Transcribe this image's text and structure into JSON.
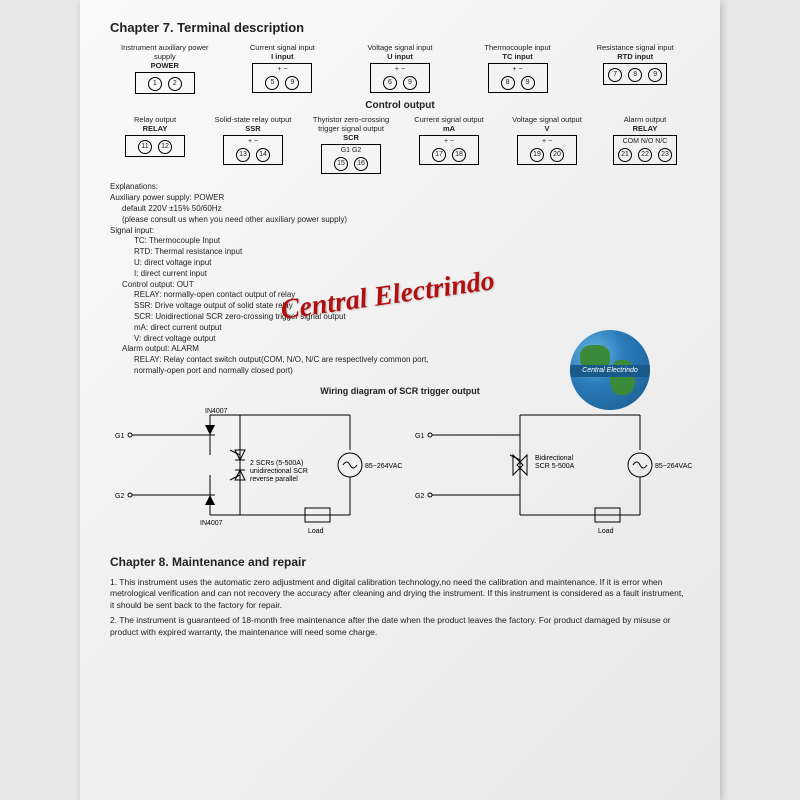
{
  "chapter7": {
    "title": "Chapter 7. Terminal description",
    "row1": [
      {
        "label1": "Instrument auxiliary power supply",
        "label2": "POWER",
        "pins": [
          {
            "n": "1"
          },
          {
            "n": "2"
          }
        ]
      },
      {
        "label1": "Current signal input",
        "label2": "I input",
        "sub": "+ −",
        "pins": [
          {
            "n": "5"
          },
          {
            "n": "9"
          }
        ]
      },
      {
        "label1": "Voltage signal input",
        "label2": "U input",
        "sub": "+ −",
        "pins": [
          {
            "n": "6"
          },
          {
            "n": "9"
          }
        ]
      },
      {
        "label1": "Thermocouple input",
        "label2": "TC input",
        "sub": "+ −",
        "pins": [
          {
            "n": "8"
          },
          {
            "n": "9"
          }
        ]
      },
      {
        "label1": "Resistance signal input",
        "label2": "RTD input",
        "pins": [
          {
            "n": "7"
          },
          {
            "n": "8"
          },
          {
            "n": "9"
          }
        ]
      }
    ],
    "control_output_title": "Control output",
    "row2": [
      {
        "label1": "Relay output",
        "label2": "RELAY",
        "pins": [
          {
            "n": "11"
          },
          {
            "n": "12"
          }
        ]
      },
      {
        "label1": "Solid-state relay output",
        "label2": "SSR",
        "sub": "+ −",
        "pins": [
          {
            "n": "13"
          },
          {
            "n": "14"
          }
        ]
      },
      {
        "label1": "Thyristor zero-crossing trigger signal output",
        "label2": "SCR",
        "sub": "G1 G2",
        "pins": [
          {
            "n": "15"
          },
          {
            "n": "16"
          }
        ]
      },
      {
        "label1": "Current signal output",
        "label2": "mA",
        "sub": "+ −",
        "pins": [
          {
            "n": "17"
          },
          {
            "n": "18"
          }
        ]
      },
      {
        "label1": "Voltage signal output",
        "label2": "V",
        "sub": "+ −",
        "pins": [
          {
            "n": "19"
          },
          {
            "n": "20"
          }
        ]
      },
      {
        "label1": "Alarm output",
        "label2": "RELAY",
        "sub": "COM N/O N/C",
        "pins": [
          {
            "n": "21"
          },
          {
            "n": "22"
          },
          {
            "n": "23"
          }
        ]
      }
    ]
  },
  "explanations": {
    "header": "Explanations:",
    "lines": [
      {
        "t": "Auxiliary power supply: POWER",
        "i": 0
      },
      {
        "t": "default 220V ±15% 50/60Hz",
        "i": 1
      },
      {
        "t": "(please consult us when you need other auxiliary power supply)",
        "i": 1
      },
      {
        "t": "Signal input:",
        "i": 0
      },
      {
        "t": "TC: Thermocouple Input",
        "i": 2
      },
      {
        "t": "RTD: Thermal resistance input",
        "i": 2
      },
      {
        "t": "U: direct voltage input",
        "i": 2
      },
      {
        "t": "I: direct current input",
        "i": 2
      },
      {
        "t": "Control output: OUT",
        "i": 1
      },
      {
        "t": "RELAY: normally-open contact output of relay",
        "i": 2
      },
      {
        "t": "SSR: Drive voltage output of solid state relay",
        "i": 2
      },
      {
        "t": "SCR: Unidirectional SCR zero-crossing trigger signal output",
        "i": 2
      },
      {
        "t": "mA: direct current output",
        "i": 2
      },
      {
        "t": "V: direct voltage output",
        "i": 2
      },
      {
        "t": "Alarm output: ALARM",
        "i": 1
      },
      {
        "t": "RELAY: Relay contact switch output(COM, N/O, N/C are respectively common port,",
        "i": 2
      },
      {
        "t": "normally-open port and normally closed port)",
        "i": 2
      }
    ],
    "wiring_title": "Wiring diagram of SCR trigger output"
  },
  "diagram1": {
    "g1": "G1",
    "g2": "G2",
    "d1": "IN4007",
    "d2": "IN4007",
    "scr_note": "2 SCRs (5-500A)\nunidirectional SCR\nreverse parallel",
    "ac": "85~264VAC",
    "load": "Load"
  },
  "diagram2": {
    "g1": "G1",
    "g2": "G2",
    "scr_note": "Bidirectional\nSCR 5-500A",
    "ac": "85~264VAC",
    "load": "Load"
  },
  "chapter8": {
    "title": "Chapter 8. Maintenance and repair",
    "item1": "1. This instrument uses the automatic zero adjustment and digital calibration technology,no need the calibration and maintenance. If it is error when metrological verification and can not recovery the accuracy after cleaning and drying the instrument. If this instrument is considered as a fault instrument, it should be sent back to the factory for repair.",
    "item2": "2. The instrument is guaranteed of 18-month free maintenance after the date when the product leaves the factory. For product damaged by misuse or product with expired warranty, the maintenance will need some charge."
  },
  "watermark": "Central Electrindo",
  "globe_text": "Central Electrindo"
}
